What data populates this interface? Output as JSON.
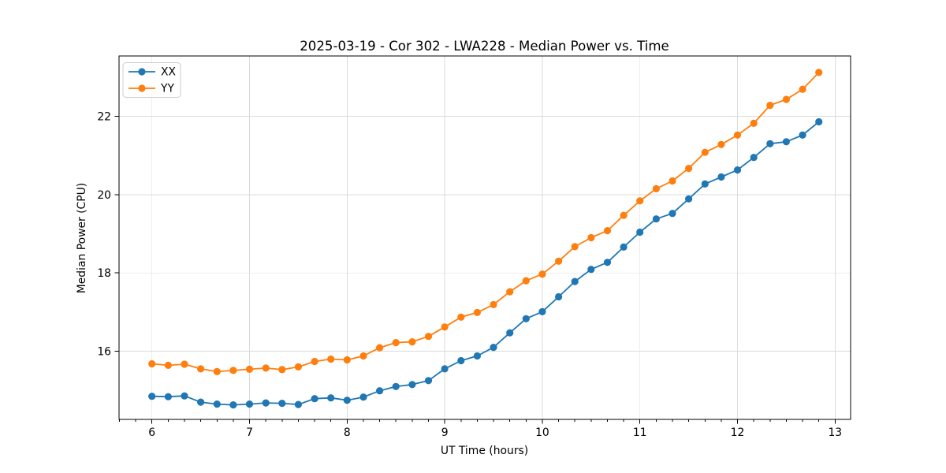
{
  "chart_data": {
    "type": "line",
    "title": "2025-03-19 - Cor 302 - LWA228 - Median Power vs. Time",
    "xlabel": "UT Time (hours)",
    "ylabel": "Median Power (CPU)",
    "xlim": [
      5.663,
      13.159
    ],
    "ylim": [
      14.26,
      23.54
    ],
    "x_major_ticks": [
      6,
      7,
      8,
      9,
      10,
      11,
      12,
      13
    ],
    "x_minor_step": 0.166667,
    "y_major_ticks": [
      16,
      18,
      20,
      22
    ],
    "grid": true,
    "grid_color": "#dbdbdb",
    "legend_position": "upper-left",
    "x": [
      6.0,
      6.1667,
      6.3333,
      6.5,
      6.6667,
      6.8333,
      7.0,
      7.1667,
      7.3333,
      7.5,
      7.6667,
      7.8333,
      8.0,
      8.1667,
      8.3333,
      8.5,
      8.6667,
      8.8333,
      9.0,
      9.1667,
      9.3333,
      9.5,
      9.6667,
      9.8333,
      10.0,
      10.1667,
      10.3333,
      10.5,
      10.6667,
      10.8333,
      11.0,
      11.1667,
      11.3333,
      11.5,
      11.6667,
      11.8333,
      12.0,
      12.1667,
      12.3333,
      12.5,
      12.6667,
      12.8333
    ],
    "series": [
      {
        "name": "XX",
        "color": "#1f77b4",
        "values": [
          14.85,
          14.84,
          14.86,
          14.7,
          14.65,
          14.63,
          14.65,
          14.68,
          14.67,
          14.64,
          14.79,
          14.81,
          14.75,
          14.83,
          14.99,
          15.1,
          15.15,
          15.25,
          15.55,
          15.76,
          15.88,
          16.1,
          16.47,
          16.83,
          17.01,
          17.39,
          17.78,
          18.09,
          18.27,
          18.66,
          19.04,
          19.38,
          19.52,
          19.89,
          20.27,
          20.45,
          20.63,
          20.95,
          21.3,
          21.35,
          21.52,
          21.86
        ]
      },
      {
        "name": "YY",
        "color": "#ff7f0e",
        "values": [
          15.68,
          15.64,
          15.67,
          15.55,
          15.48,
          15.51,
          15.54,
          15.57,
          15.53,
          15.6,
          15.74,
          15.8,
          15.78,
          15.88,
          16.09,
          16.22,
          16.24,
          16.38,
          16.62,
          16.87,
          16.99,
          17.19,
          17.52,
          17.8,
          17.97,
          18.3,
          18.67,
          18.9,
          19.08,
          19.47,
          19.84,
          20.15,
          20.35,
          20.67,
          21.08,
          21.28,
          21.52,
          21.82,
          22.28,
          22.43,
          22.69,
          23.12
        ]
      }
    ]
  }
}
